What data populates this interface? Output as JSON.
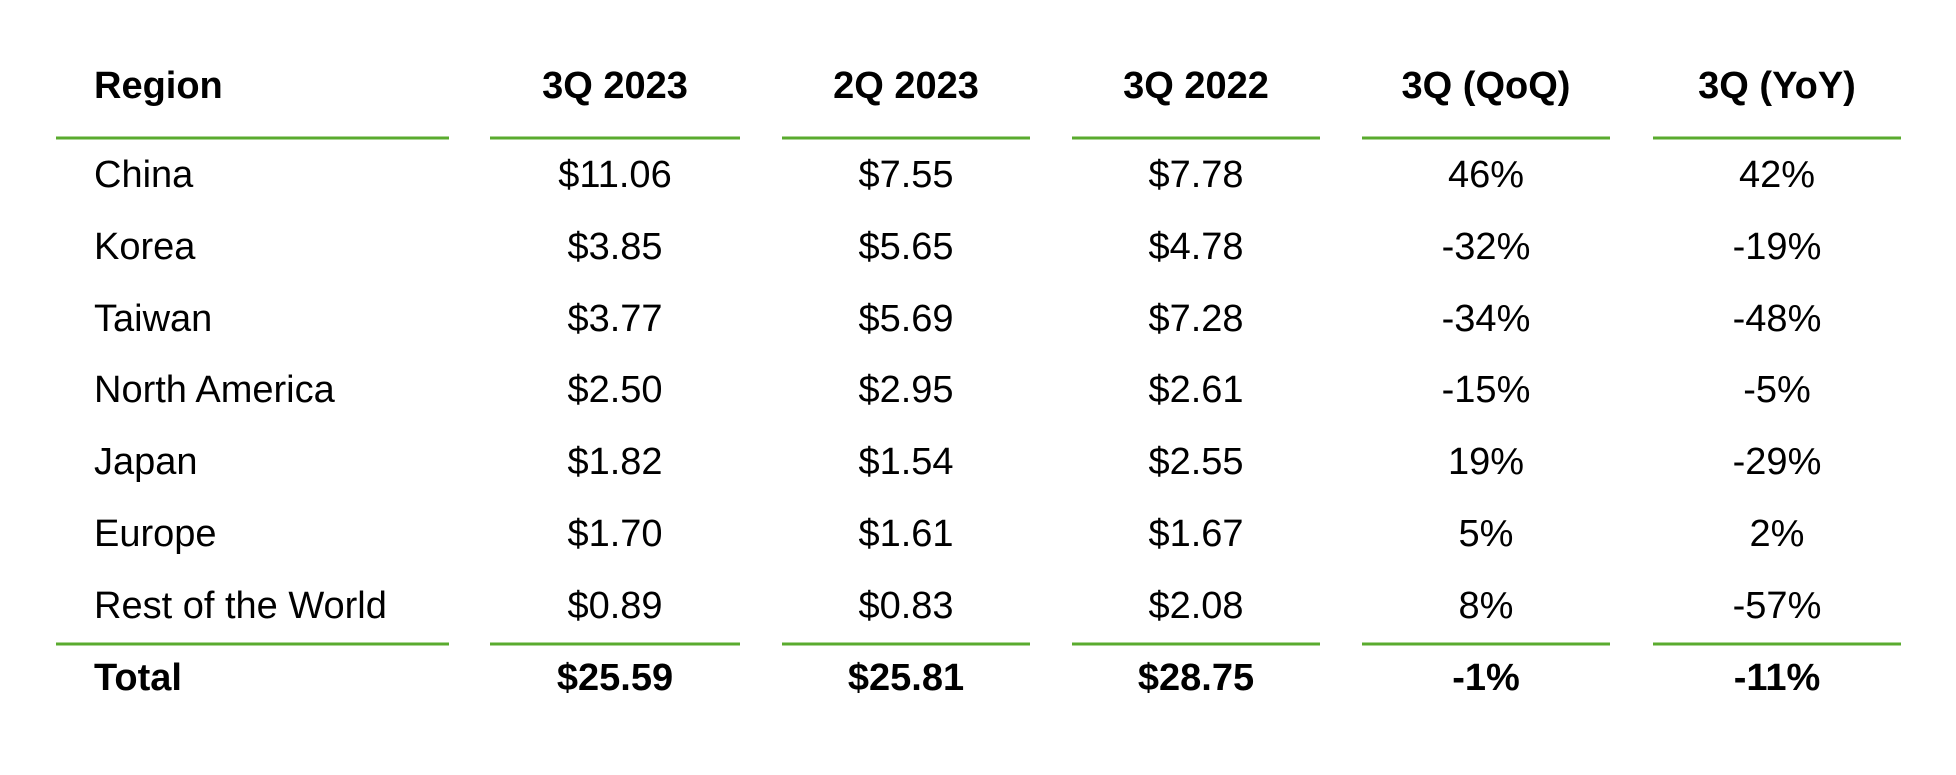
{
  "table": {
    "header": [
      "Region",
      "3Q 2023",
      "2Q 2023",
      "3Q 2022",
      "3Q (QoQ)",
      "3Q (YoY)"
    ],
    "rows": [
      [
        "China",
        "$11.06",
        "$7.55",
        "$7.78",
        "46%",
        "42%"
      ],
      [
        "Korea",
        "$3.85",
        "$5.65",
        "$4.78",
        "-32%",
        "-19%"
      ],
      [
        "Taiwan",
        "$3.77",
        "$5.69",
        "$7.28",
        "-34%",
        "-48%"
      ],
      [
        "North America",
        "$2.50",
        "$2.95",
        "$2.61",
        "-15%",
        "-5%"
      ],
      [
        "Japan",
        "$1.82",
        "$1.54",
        "$2.55",
        "19%",
        "-29%"
      ],
      [
        "Europe",
        "$1.70",
        "$1.61",
        "$1.67",
        "5%",
        "2%"
      ],
      [
        "Rest of the World",
        "$0.89",
        "$0.83",
        "$2.08",
        "8%",
        "-57%"
      ]
    ],
    "total": [
      "Total",
      "$25.59",
      "$25.81",
      "$28.75",
      "-1%",
      "-11%"
    ]
  }
}
